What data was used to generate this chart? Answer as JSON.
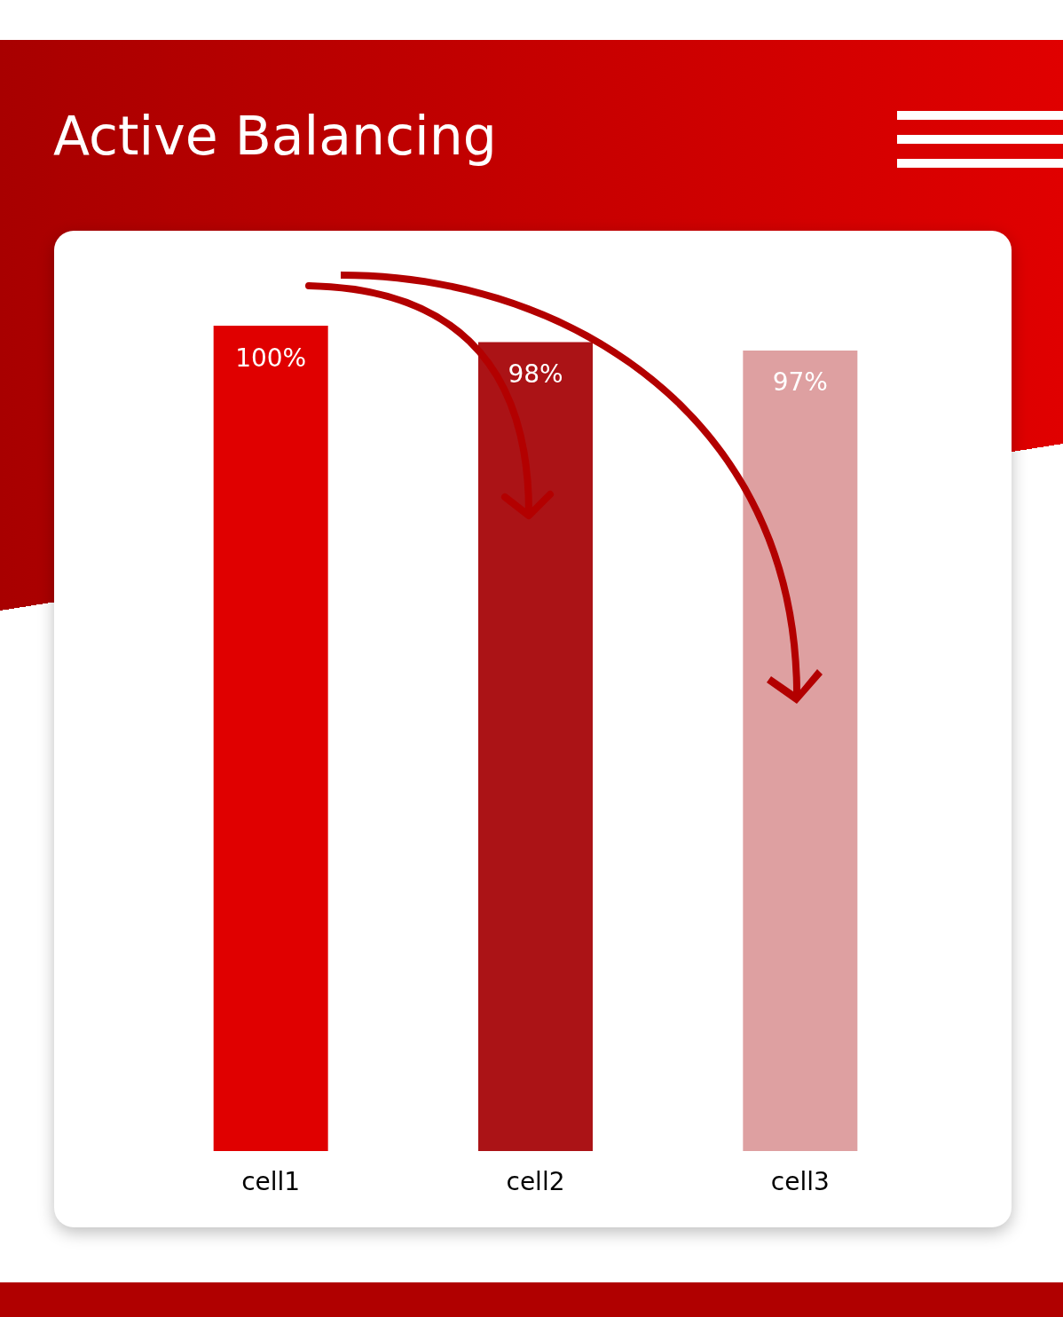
{
  "chart_data": {
    "type": "bar",
    "title": "Active Balancing",
    "categories": [
      "cell1",
      "cell2",
      "cell3"
    ],
    "values": [
      100,
      98,
      97
    ],
    "colors": [
      "#e00000",
      "#ab1316",
      "#dea0a1"
    ],
    "data_labels": true,
    "value_labels": [
      "100%",
      "98%",
      "97%"
    ],
    "tick_labels": "x"
  }
}
